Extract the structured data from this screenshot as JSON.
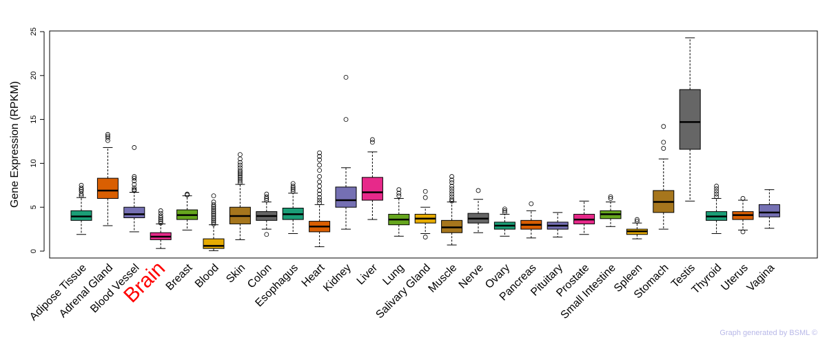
{
  "chart_data": {
    "type": "boxplot",
    "ylabel": "Gene Expression (RPKM)",
    "ylim": [
      0,
      25
    ],
    "yticks": [
      0,
      5,
      10,
      15,
      20,
      25
    ],
    "highlight": "Brain",
    "highlight_color": "#ff0000",
    "categories": [
      {
        "name": "Adipose Tissue",
        "color": "#1b9e77",
        "whisker_low": 1.9,
        "q1": 3.5,
        "median": 3.95,
        "q3": 4.6,
        "whisker_high": 6.1,
        "outliers": [
          6.3,
          6.5,
          6.8,
          7.0,
          7.2,
          7.5
        ]
      },
      {
        "name": "Adrenal Gland",
        "color": "#d95f02",
        "whisker_low": 2.9,
        "q1": 6.0,
        "median": 6.9,
        "q3": 8.3,
        "whisker_high": 11.8,
        "outliers": [
          12.6,
          12.9,
          13.1,
          13.3
        ]
      },
      {
        "name": "Blood Vessel",
        "color": "#7570b3",
        "whisker_low": 2.2,
        "q1": 3.8,
        "median": 4.2,
        "q3": 5.0,
        "whisker_high": 6.7,
        "outliers": [
          6.9,
          7.0,
          7.2,
          7.6,
          8.0,
          8.3,
          8.5,
          11.8
        ]
      },
      {
        "name": "Brain",
        "color": "#e7298a",
        "whisker_low": 0.3,
        "q1": 1.3,
        "median": 1.65,
        "q3": 2.1,
        "whisker_high": 3.1,
        "outliers": [
          3.2,
          3.4,
          3.6,
          3.8,
          4.0,
          4.3,
          4.6
        ]
      },
      {
        "name": "Breast",
        "color": "#66a61e",
        "whisker_low": 2.4,
        "q1": 3.6,
        "median": 4.1,
        "q3": 4.7,
        "whisker_high": 6.3,
        "outliers": [
          6.4,
          6.5
        ]
      },
      {
        "name": "Blood",
        "color": "#e6ab02",
        "whisker_low": 0.05,
        "q1": 0.3,
        "median": 0.6,
        "q3": 1.4,
        "whisker_high": 3.0,
        "outliers": [
          3.1,
          3.3,
          3.5,
          3.7,
          3.9,
          4.1,
          4.3,
          4.5,
          4.7,
          4.9,
          5.1,
          5.3,
          5.6,
          6.3
        ]
      },
      {
        "name": "Skin",
        "color": "#a6761d",
        "whisker_low": 1.3,
        "q1": 3.1,
        "median": 4.0,
        "q3": 5.0,
        "whisker_high": 7.6,
        "outliers": [
          7.8,
          8.0,
          8.2,
          8.4,
          8.6,
          8.8,
          9.0,
          9.2,
          9.5,
          9.8,
          10.1,
          10.5,
          11.0
        ]
      },
      {
        "name": "Colon",
        "color": "#666666",
        "whisker_low": 2.5,
        "q1": 3.5,
        "median": 4.0,
        "q3": 4.5,
        "whisker_high": 5.6,
        "outliers": [
          5.8,
          6.0,
          6.2,
          6.5,
          1.9
        ]
      },
      {
        "name": "Esophagus",
        "color": "#1b9e77",
        "whisker_low": 2.0,
        "q1": 3.6,
        "median": 4.2,
        "q3": 4.9,
        "whisker_high": 6.6,
        "outliers": [
          6.8,
          7.0,
          7.2,
          7.4,
          7.7
        ]
      },
      {
        "name": "Heart",
        "color": "#d95f02",
        "whisker_low": 0.5,
        "q1": 2.2,
        "median": 2.8,
        "q3": 3.4,
        "whisker_high": 5.3,
        "outliers": [
          5.5,
          5.8,
          6.1,
          6.5,
          6.9,
          7.4,
          7.9,
          8.5,
          9.2,
          9.8,
          10.4,
          10.8,
          11.2
        ]
      },
      {
        "name": "Kidney",
        "color": "#7570b3",
        "whisker_low": 2.5,
        "q1": 5.0,
        "median": 5.8,
        "q3": 7.3,
        "whisker_high": 9.5,
        "outliers": [
          15.0,
          19.8
        ]
      },
      {
        "name": "Liver",
        "color": "#e7298a",
        "whisker_low": 3.6,
        "q1": 5.8,
        "median": 6.7,
        "q3": 8.4,
        "whisker_high": 11.3,
        "outliers": [
          12.4,
          12.7
        ]
      },
      {
        "name": "Lung",
        "color": "#66a61e",
        "whisker_low": 1.7,
        "q1": 3.0,
        "median": 3.6,
        "q3": 4.2,
        "whisker_high": 6.0,
        "outliers": [
          6.3,
          6.6,
          7.0
        ]
      },
      {
        "name": "Salivary Gland",
        "color": "#e6ab02",
        "whisker_low": 2.0,
        "q1": 3.2,
        "median": 3.7,
        "q3": 4.2,
        "whisker_high": 5.0,
        "outliers": [
          6.1,
          6.8,
          1.6
        ]
      },
      {
        "name": "Muscle",
        "color": "#a6761d",
        "whisker_low": 0.7,
        "q1": 2.1,
        "median": 2.7,
        "q3": 3.5,
        "whisker_high": 5.6,
        "outliers": [
          5.7,
          5.9,
          6.2,
          6.5,
          6.8,
          7.1,
          7.4,
          7.8,
          8.1,
          8.5
        ]
      },
      {
        "name": "Nerve",
        "color": "#666666",
        "whisker_low": 2.1,
        "q1": 3.2,
        "median": 3.7,
        "q3": 4.3,
        "whisker_high": 5.9,
        "outliers": [
          6.9
        ]
      },
      {
        "name": "Ovary",
        "color": "#1b9e77",
        "whisker_low": 1.7,
        "q1": 2.5,
        "median": 2.9,
        "q3": 3.3,
        "whisker_high": 4.2,
        "outliers": [
          4.4,
          4.6,
          4.8
        ]
      },
      {
        "name": "Pancreas",
        "color": "#d95f02",
        "whisker_low": 1.5,
        "q1": 2.5,
        "median": 3.0,
        "q3": 3.5,
        "whisker_high": 4.6,
        "outliers": [
          5.4
        ]
      },
      {
        "name": "Pituitary",
        "color": "#7570b3",
        "whisker_low": 1.6,
        "q1": 2.5,
        "median": 2.9,
        "q3": 3.3,
        "whisker_high": 4.4,
        "outliers": []
      },
      {
        "name": "Prostate",
        "color": "#e7298a",
        "whisker_low": 1.9,
        "q1": 3.1,
        "median": 3.6,
        "q3": 4.2,
        "whisker_high": 5.7,
        "outliers": []
      },
      {
        "name": "Small Intestine",
        "color": "#66a61e",
        "whisker_low": 2.8,
        "q1": 3.7,
        "median": 4.2,
        "q3": 4.6,
        "whisker_high": 5.6,
        "outliers": [
          6.0,
          6.2
        ]
      },
      {
        "name": "Spleen",
        "color": "#e6ab02",
        "whisker_low": 1.4,
        "q1": 1.9,
        "median": 2.25,
        "q3": 2.5,
        "whisker_high": 3.2,
        "outliers": [
          3.4,
          3.6
        ]
      },
      {
        "name": "Stomach",
        "color": "#a6761d",
        "whisker_low": 2.5,
        "q1": 4.4,
        "median": 5.6,
        "q3": 6.9,
        "whisker_high": 10.5,
        "outliers": [
          11.7,
          12.4,
          14.2
        ]
      },
      {
        "name": "Testis",
        "color": "#666666",
        "whisker_low": 5.7,
        "q1": 11.6,
        "median": 14.7,
        "q3": 18.4,
        "whisker_high": 24.3,
        "outliers": []
      },
      {
        "name": "Thyroid",
        "color": "#1b9e77",
        "whisker_low": 2.0,
        "q1": 3.5,
        "median": 3.95,
        "q3": 4.5,
        "whisker_high": 6.0,
        "outliers": [
          6.2,
          6.5,
          6.8,
          7.1,
          7.4
        ]
      },
      {
        "name": "Uterus",
        "color": "#d95f02",
        "whisker_low": 2.4,
        "q1": 3.6,
        "median": 4.1,
        "q3": 4.5,
        "whisker_high": 5.8,
        "outliers": [
          6.0,
          2.2
        ]
      },
      {
        "name": "Vagina",
        "color": "#7570b3",
        "whisker_low": 2.6,
        "q1": 3.9,
        "median": 4.4,
        "q3": 5.3,
        "whisker_high": 7.0,
        "outliers": []
      }
    ]
  },
  "footer": "Graph generated by BSML ©"
}
